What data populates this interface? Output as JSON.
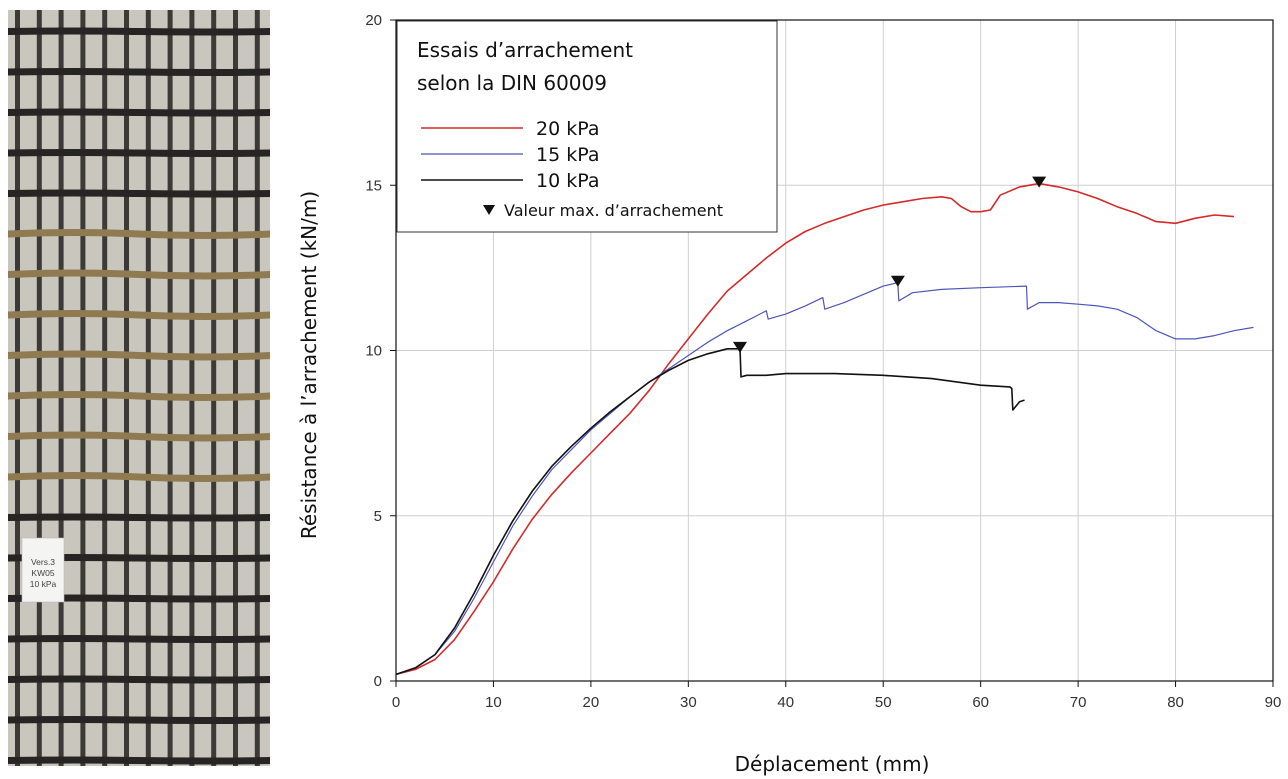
{
  "photo": {
    "label_lines": [
      "Vers.3",
      "KW05",
      "10 kPa"
    ]
  },
  "colors": {
    "20kPa": "#d42a2a",
    "15kPa": "#4d56b8",
    "10kPa": "#111111",
    "grid": "#cfcfcf"
  },
  "chart_data": {
    "type": "line",
    "xlabel": "Déplacement (mm)",
    "ylabel": "Résistance à l’arrachement (kN/m)",
    "xlim": [
      0,
      90
    ],
    "ylim": [
      0,
      20
    ],
    "x_ticks": [
      0,
      10,
      20,
      30,
      40,
      50,
      60,
      70,
      80,
      90
    ],
    "y_ticks": [
      0,
      5,
      10,
      15,
      20
    ],
    "grid": true,
    "legend": {
      "position": "top-left",
      "title_lines": [
        "Essais d’arrachement",
        "selon la DIN 60009"
      ],
      "entries": [
        "20 kPa",
        "15 kPa",
        "10 kPa"
      ],
      "marker_label": "Valeur max. d’arrachement"
    },
    "series": [
      {
        "name": "20 kPa",
        "color": "#d42a2a",
        "points": [
          [
            0,
            0.2
          ],
          [
            2,
            0.35
          ],
          [
            4,
            0.65
          ],
          [
            6,
            1.25
          ],
          [
            8,
            2.1
          ],
          [
            10,
            3.0
          ],
          [
            12,
            4.0
          ],
          [
            14,
            4.9
          ],
          [
            16,
            5.65
          ],
          [
            18,
            6.3
          ],
          [
            20,
            6.9
          ],
          [
            22,
            7.5
          ],
          [
            24,
            8.1
          ],
          [
            26,
            8.8
          ],
          [
            28,
            9.6
          ],
          [
            30,
            10.35
          ],
          [
            32,
            11.1
          ],
          [
            34,
            11.8
          ],
          [
            36,
            12.3
          ],
          [
            38,
            12.8
          ],
          [
            40,
            13.25
          ],
          [
            42,
            13.6
          ],
          [
            44,
            13.85
          ],
          [
            46,
            14.05
          ],
          [
            48,
            14.25
          ],
          [
            50,
            14.4
          ],
          [
            52,
            14.5
          ],
          [
            54,
            14.6
          ],
          [
            56,
            14.65
          ],
          [
            57,
            14.6
          ],
          [
            58,
            14.35
          ],
          [
            59,
            14.2
          ],
          [
            60,
            14.2
          ],
          [
            61,
            14.25
          ],
          [
            62,
            14.7
          ],
          [
            64,
            14.95
          ],
          [
            66,
            15.05
          ],
          [
            68,
            14.95
          ],
          [
            70,
            14.8
          ],
          [
            72,
            14.6
          ],
          [
            74,
            14.35
          ],
          [
            76,
            14.15
          ],
          [
            78,
            13.9
          ],
          [
            80,
            13.85
          ],
          [
            82,
            14.0
          ],
          [
            84,
            14.1
          ],
          [
            86,
            14.05
          ]
        ],
        "max_point": [
          66,
          15.05
        ]
      },
      {
        "name": "15 kPa",
        "color": "#4d56b8",
        "points": [
          [
            0,
            0.2
          ],
          [
            2,
            0.4
          ],
          [
            4,
            0.8
          ],
          [
            6,
            1.5
          ],
          [
            8,
            2.5
          ],
          [
            10,
            3.6
          ],
          [
            12,
            4.7
          ],
          [
            14,
            5.6
          ],
          [
            16,
            6.4
          ],
          [
            18,
            7.0
          ],
          [
            20,
            7.6
          ],
          [
            22,
            8.1
          ],
          [
            24,
            8.6
          ],
          [
            26,
            9.05
          ],
          [
            28,
            9.45
          ],
          [
            30,
            9.85
          ],
          [
            32,
            10.25
          ],
          [
            34,
            10.6
          ],
          [
            36,
            10.9
          ],
          [
            38,
            11.2
          ],
          [
            38.2,
            10.95
          ],
          [
            40,
            11.1
          ],
          [
            42,
            11.35
          ],
          [
            43.8,
            11.6
          ],
          [
            44,
            11.25
          ],
          [
            46,
            11.45
          ],
          [
            48,
            11.7
          ],
          [
            50,
            11.95
          ],
          [
            51.5,
            12.05
          ],
          [
            51.6,
            11.5
          ],
          [
            53,
            11.75
          ],
          [
            56,
            11.85
          ],
          [
            60,
            11.9
          ],
          [
            64.7,
            11.95
          ],
          [
            64.8,
            11.25
          ],
          [
            66,
            11.45
          ],
          [
            68,
            11.45
          ],
          [
            70,
            11.4
          ],
          [
            72,
            11.35
          ],
          [
            74,
            11.25
          ],
          [
            76,
            11.0
          ],
          [
            78,
            10.6
          ],
          [
            80,
            10.35
          ],
          [
            82,
            10.35
          ],
          [
            84,
            10.45
          ],
          [
            86,
            10.6
          ],
          [
            88,
            10.7
          ]
        ],
        "max_point": [
          51.5,
          12.05
        ]
      },
      {
        "name": "10 kPa",
        "color": "#111111",
        "points": [
          [
            0,
            0.2
          ],
          [
            2,
            0.4
          ],
          [
            4,
            0.8
          ],
          [
            6,
            1.6
          ],
          [
            8,
            2.65
          ],
          [
            10,
            3.8
          ],
          [
            12,
            4.85
          ],
          [
            14,
            5.75
          ],
          [
            16,
            6.5
          ],
          [
            18,
            7.1
          ],
          [
            20,
            7.65
          ],
          [
            22,
            8.15
          ],
          [
            24,
            8.6
          ],
          [
            26,
            9.05
          ],
          [
            28,
            9.4
          ],
          [
            30,
            9.7
          ],
          [
            32,
            9.9
          ],
          [
            34,
            10.05
          ],
          [
            35.3,
            10.05
          ],
          [
            35.4,
            9.2
          ],
          [
            36,
            9.25
          ],
          [
            38,
            9.25
          ],
          [
            40,
            9.3
          ],
          [
            45,
            9.3
          ],
          [
            50,
            9.25
          ],
          [
            55,
            9.15
          ],
          [
            60,
            8.95
          ],
          [
            63,
            8.9
          ],
          [
            63.2,
            8.85
          ],
          [
            63.3,
            8.2
          ],
          [
            64,
            8.45
          ],
          [
            64.5,
            8.5
          ]
        ],
        "max_point": [
          35.3,
          10.05
        ]
      }
    ]
  }
}
